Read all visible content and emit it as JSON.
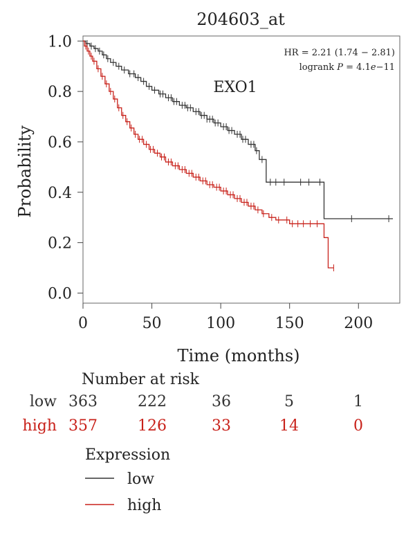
{
  "chart_data": {
    "type": "line",
    "title": "204603_at",
    "gene_label": "EXO1",
    "xlabel": "Time (months)",
    "ylabel": "Probability",
    "xlim": [
      0,
      230
    ],
    "ylim": [
      -0.04,
      1.02
    ],
    "x_ticks": [
      "0",
      "50",
      "100",
      "150",
      "200"
    ],
    "x_tick_values": [
      0,
      50,
      100,
      150,
      200
    ],
    "y_ticks": [
      "0.0",
      "0.2",
      "0.4",
      "0.6",
      "0.8",
      "1.0"
    ],
    "y_tick_values": [
      0.0,
      0.2,
      0.4,
      0.6,
      0.8,
      1.0
    ],
    "stats": {
      "hr_text": "HR = 2.21 (1.74 − 2.81)",
      "logrank_prefix": "logrank ",
      "logrank_p_symbol": "P",
      "logrank_eq": " = 4.1",
      "logrank_e": "e",
      "logrank_exp": "−11"
    },
    "series": [
      {
        "name": "low",
        "color": "#333333",
        "steps": [
          [
            0,
            1.0
          ],
          [
            2,
            0.99
          ],
          [
            5,
            0.98
          ],
          [
            8,
            0.97
          ],
          [
            11,
            0.96
          ],
          [
            14,
            0.945
          ],
          [
            17,
            0.93
          ],
          [
            20,
            0.915
          ],
          [
            24,
            0.9
          ],
          [
            28,
            0.885
          ],
          [
            33,
            0.87
          ],
          [
            38,
            0.855
          ],
          [
            42,
            0.84
          ],
          [
            46,
            0.82
          ],
          [
            50,
            0.805
          ],
          [
            55,
            0.79
          ],
          [
            60,
            0.775
          ],
          [
            65,
            0.76
          ],
          [
            70,
            0.745
          ],
          [
            75,
            0.735
          ],
          [
            80,
            0.72
          ],
          [
            85,
            0.705
          ],
          [
            90,
            0.69
          ],
          [
            95,
            0.675
          ],
          [
            100,
            0.66
          ],
          [
            105,
            0.645
          ],
          [
            110,
            0.63
          ],
          [
            115,
            0.61
          ],
          [
            120,
            0.59
          ],
          [
            125,
            0.565
          ],
          [
            128,
            0.53
          ],
          [
            133,
            0.44
          ],
          [
            150,
            0.44
          ],
          [
            175,
            0.295
          ],
          [
            225,
            0.295
          ]
        ],
        "censor_x": [
          3,
          6,
          9,
          12,
          15,
          18,
          22,
          26,
          30,
          34,
          37,
          40,
          44,
          48,
          52,
          56,
          58,
          62,
          64,
          66,
          68,
          72,
          74,
          76,
          78,
          82,
          84,
          86,
          88,
          90,
          92,
          94,
          96,
          98,
          102,
          104,
          106,
          108,
          112,
          114,
          116,
          118,
          122,
          124,
          126,
          130,
          136,
          140,
          146,
          158,
          164,
          172,
          195,
          222
        ]
      },
      {
        "name": "high",
        "color": "#c8211a",
        "steps": [
          [
            0,
            1.0
          ],
          [
            1,
            0.98
          ],
          [
            3,
            0.96
          ],
          [
            5,
            0.94
          ],
          [
            7,
            0.92
          ],
          [
            10,
            0.89
          ],
          [
            13,
            0.86
          ],
          [
            16,
            0.83
          ],
          [
            19,
            0.8
          ],
          [
            22,
            0.77
          ],
          [
            25,
            0.735
          ],
          [
            28,
            0.705
          ],
          [
            31,
            0.68
          ],
          [
            34,
            0.655
          ],
          [
            37,
            0.63
          ],
          [
            40,
            0.61
          ],
          [
            44,
            0.59
          ],
          [
            48,
            0.57
          ],
          [
            52,
            0.555
          ],
          [
            56,
            0.54
          ],
          [
            60,
            0.52
          ],
          [
            65,
            0.505
          ],
          [
            70,
            0.49
          ],
          [
            75,
            0.475
          ],
          [
            80,
            0.46
          ],
          [
            85,
            0.445
          ],
          [
            90,
            0.43
          ],
          [
            95,
            0.42
          ],
          [
            100,
            0.405
          ],
          [
            105,
            0.39
          ],
          [
            110,
            0.375
          ],
          [
            115,
            0.36
          ],
          [
            120,
            0.345
          ],
          [
            125,
            0.33
          ],
          [
            130,
            0.315
          ],
          [
            135,
            0.3
          ],
          [
            140,
            0.29
          ],
          [
            150,
            0.275
          ],
          [
            174,
            0.275
          ],
          [
            175,
            0.22
          ],
          [
            178,
            0.2
          ],
          [
            178,
            0.1
          ],
          [
            182,
            0.1
          ]
        ],
        "censor_x": [
          2,
          4,
          6,
          8,
          11,
          14,
          17,
          20,
          23,
          26,
          29,
          32,
          35,
          38,
          41,
          43,
          46,
          49,
          51,
          54,
          57,
          59,
          62,
          64,
          67,
          69,
          72,
          74,
          77,
          79,
          82,
          84,
          87,
          89,
          92,
          94,
          97,
          99,
          102,
          104,
          107,
          109,
          112,
          114,
          117,
          119,
          122,
          124,
          127,
          131,
          137,
          142,
          148,
          152,
          156,
          160,
          165,
          170,
          182
        ]
      }
    ],
    "risk_table": {
      "title": "Number at risk",
      "rows": [
        {
          "label": "low",
          "color": "#333333",
          "counts": [
            "363",
            "222",
            "36",
            "5",
            "1"
          ]
        },
        {
          "label": "high",
          "color": "#c8211a",
          "counts": [
            "357",
            "126",
            "33",
            "14",
            "0"
          ]
        }
      ]
    },
    "legend": {
      "title": "Expression",
      "entries": [
        {
          "label": "low",
          "color": "#333333"
        },
        {
          "label": "high",
          "color": "#c8211a"
        }
      ]
    }
  }
}
